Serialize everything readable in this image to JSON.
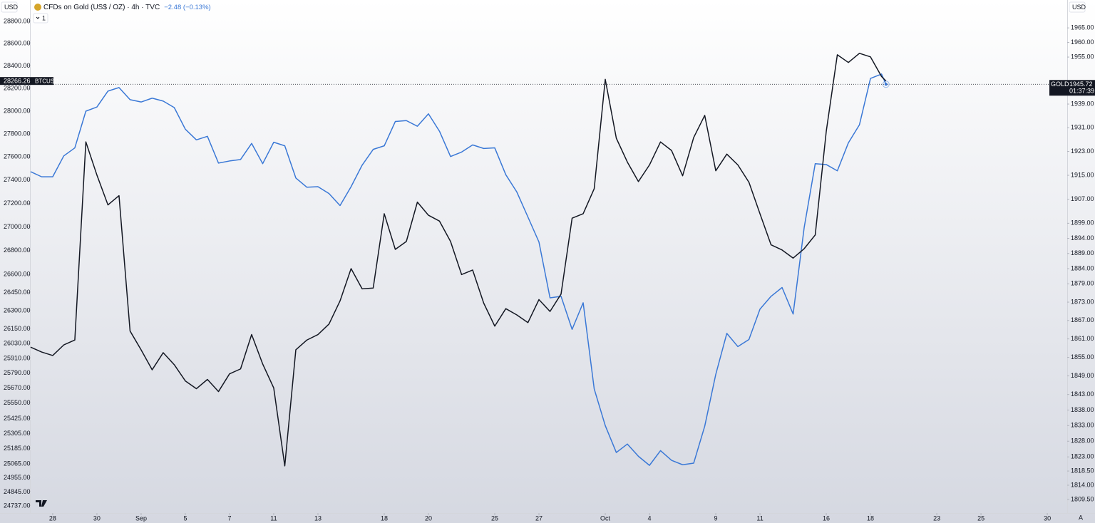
{
  "chart_data": {
    "type": "line",
    "title": "CFDs on Gold (US$ / OZ) · 4h · TVC",
    "change": "−2.48 (−0.13%)",
    "currency": "USD",
    "interval_button": "1",
    "auto_scale_button": "A",
    "countdown": "01:37:39",
    "log_scale": true,
    "grid": false,
    "x": [
      -1,
      -0.5,
      0,
      0.5,
      1,
      1.5,
      2,
      2.5,
      3,
      3.5,
      4,
      4.5,
      5,
      5.5,
      6,
      6.5,
      7,
      7.5,
      8,
      8.5,
      9,
      9.5,
      10,
      10.5,
      11,
      11.5,
      12,
      12.5,
      13,
      13.5,
      14,
      14.5,
      15,
      15.5,
      16,
      16.5,
      17,
      17.5,
      18,
      18.5,
      19,
      19.5,
      20,
      20.5,
      21,
      21.5,
      22,
      22.5,
      23,
      23.5,
      24,
      24.5,
      25,
      25.5,
      26,
      26.5,
      27,
      27.5,
      28,
      28.5,
      29,
      29.5,
      30,
      30.5,
      31,
      31.5,
      32,
      32.5,
      33,
      33.5,
      34,
      34.5,
      35,
      35.5,
      36,
      36.5,
      37,
      37.5,
      37.7
    ],
    "xlim": [
      -1.03,
      45.9
    ],
    "xticks": [
      {
        "value": 0,
        "label": "28"
      },
      {
        "value": 2,
        "label": "30"
      },
      {
        "value": 4,
        "label": "Sep"
      },
      {
        "value": 6,
        "label": "5"
      },
      {
        "value": 8,
        "label": "7"
      },
      {
        "value": 10,
        "label": "11"
      },
      {
        "value": 12,
        "label": "13"
      },
      {
        "value": 15,
        "label": "18"
      },
      {
        "value": 17,
        "label": "20"
      },
      {
        "value": 20,
        "label": "25"
      },
      {
        "value": 22,
        "label": "27"
      },
      {
        "value": 25,
        "label": "Oct"
      },
      {
        "value": 27,
        "label": "4"
      },
      {
        "value": 30,
        "label": "9"
      },
      {
        "value": 32,
        "label": "11"
      },
      {
        "value": 35,
        "label": "16"
      },
      {
        "value": 37,
        "label": "18"
      },
      {
        "value": 40,
        "label": "23"
      },
      {
        "value": 42,
        "label": "25"
      },
      {
        "value": 45,
        "label": "30"
      }
    ],
    "ylim": [
      24682,
      28994
    ],
    "yticks": [
      {
        "value": 28800,
        "label": "28800.00"
      },
      {
        "value": 28600,
        "label": "28600.00"
      },
      {
        "value": 28400,
        "label": "28400.00"
      },
      {
        "value": 28200,
        "label": "28200.00"
      },
      {
        "value": 28000,
        "label": "28000.00"
      },
      {
        "value": 27800,
        "label": "27800.00"
      },
      {
        "value": 27600,
        "label": "27600.00"
      },
      {
        "value": 27400,
        "label": "27400.00"
      },
      {
        "value": 27200,
        "label": "27200.00"
      },
      {
        "value": 27000,
        "label": "27000.00"
      },
      {
        "value": 26800,
        "label": "26800.00"
      },
      {
        "value": 26600,
        "label": "26600.00"
      },
      {
        "value": 26450,
        "label": "26450.00"
      },
      {
        "value": 26300,
        "label": "26300.00"
      },
      {
        "value": 26150,
        "label": "26150.00"
      },
      {
        "value": 26030,
        "label": "26030.00"
      },
      {
        "value": 25910,
        "label": "25910.00"
      },
      {
        "value": 25790,
        "label": "25790.00"
      },
      {
        "value": 25670,
        "label": "25670.00"
      },
      {
        "value": 25550,
        "label": "25550.00"
      },
      {
        "value": 25425,
        "label": "25425.00"
      },
      {
        "value": 25305,
        "label": "25305.00"
      },
      {
        "value": 25185,
        "label": "25185.00"
      },
      {
        "value": 25065,
        "label": "25065.00"
      },
      {
        "value": 24955,
        "label": "24955.00"
      },
      {
        "value": 24845,
        "label": "24845.00"
      },
      {
        "value": 24737,
        "label": "24737.00"
      }
    ],
    "y2lim": [
      1805.2,
      1974.6
    ],
    "y2ticks": [
      {
        "value": 1965,
        "label": "1965.00"
      },
      {
        "value": 1960,
        "label": "1960.00"
      },
      {
        "value": 1955,
        "label": "1955.00"
      },
      {
        "value": 1939,
        "label": "1939.00"
      },
      {
        "value": 1931,
        "label": "1931.00"
      },
      {
        "value": 1923,
        "label": "1923.00"
      },
      {
        "value": 1915,
        "label": "1915.00"
      },
      {
        "value": 1907,
        "label": "1907.00"
      },
      {
        "value": 1899,
        "label": "1899.00"
      },
      {
        "value": 1894,
        "label": "1894.00"
      },
      {
        "value": 1889,
        "label": "1889.00"
      },
      {
        "value": 1884,
        "label": "1884.00"
      },
      {
        "value": 1879,
        "label": "1879.00"
      },
      {
        "value": 1873,
        "label": "1873.00"
      },
      {
        "value": 1867,
        "label": "1867.00"
      },
      {
        "value": 1861,
        "label": "1861.00"
      },
      {
        "value": 1855,
        "label": "1855.00"
      },
      {
        "value": 1849,
        "label": "1849.00"
      },
      {
        "value": 1843,
        "label": "1843.00"
      },
      {
        "value": 1838,
        "label": "1838.00"
      },
      {
        "value": 1833,
        "label": "1833.00"
      },
      {
        "value": 1828,
        "label": "1828.00"
      },
      {
        "value": 1823,
        "label": "1823.00"
      },
      {
        "value": 1818.5,
        "label": "1818.50"
      },
      {
        "value": 1814,
        "label": "1814.00"
      },
      {
        "value": 1809.5,
        "label": "1809.50"
      }
    ],
    "series": [
      {
        "name": "GOLD",
        "color": "#3a78d6",
        "axis": "y2",
        "values": [
          1916.2,
          1914.5,
          1914.5,
          1921.5,
          1924.2,
          1936.6,
          1938.0,
          1943.4,
          1944.6,
          1940.5,
          1939.7,
          1941.0,
          1940.0,
          1937.8,
          1930.5,
          1926.9,
          1928.1,
          1919.1,
          1919.8,
          1920.3,
          1925.7,
          1918.9,
          1926.1,
          1924.9,
          1914.1,
          1911.0,
          1911.2,
          1908.9,
          1904.9,
          1911.2,
          1918.4,
          1923.7,
          1924.9,
          1933.1,
          1933.4,
          1931.5,
          1935.7,
          1929.8,
          1921.3,
          1922.8,
          1925.2,
          1924.0,
          1924.2,
          1915.2,
          1909.4,
          1901.1,
          1892.8,
          1874.4,
          1874.9,
          1864.1,
          1872.8,
          1844.8,
          1833.0,
          1824.4,
          1827.1,
          1823.2,
          1820.3,
          1825.0,
          1821.9,
          1820.5,
          1821.0,
          1832.8,
          1849.5,
          1862.8,
          1858.5,
          1860.8,
          1870.7,
          1874.9,
          1877.8,
          1869.1,
          1897.6,
          1918.9,
          1918.6,
          1916.5,
          1925.9,
          1932.0,
          1947.7,
          1949.2,
          1945.72
        ]
      },
      {
        "name": "BTCUSD",
        "color": "#131722",
        "axis": "y",
        "values": [
          26001,
          25961,
          25933,
          26019,
          26059,
          27731,
          27444,
          27188,
          27267,
          26133,
          25979,
          25817,
          25956,
          25858,
          25727,
          25664,
          25739,
          25641,
          25784,
          25824,
          26104,
          25864,
          25670,
          25050,
          25979,
          26059,
          26104,
          26190,
          26381,
          26650,
          26481,
          26488,
          27113,
          26811,
          26878,
          27212,
          27100,
          27050,
          26878,
          26600,
          26638,
          26363,
          26173,
          26317,
          26265,
          26202,
          26392,
          26294,
          26438,
          27075,
          27113,
          27327,
          28281,
          27763,
          27556,
          27388,
          27531,
          27731,
          27656,
          27438,
          27769,
          27963,
          27481,
          27625,
          27531,
          27382,
          27113,
          26850,
          26806,
          26738,
          26817,
          26933,
          27825,
          28500,
          28431,
          28513,
          28481,
          28306,
          28266.26
        ]
      }
    ]
  }
}
